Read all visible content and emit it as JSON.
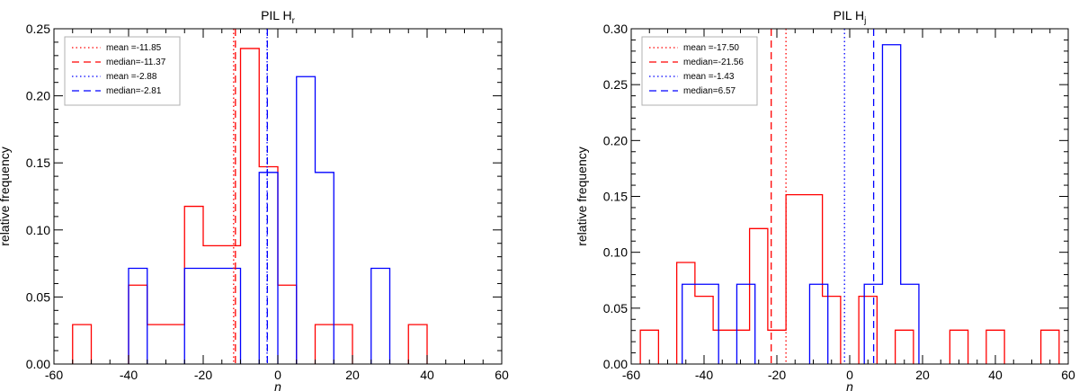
{
  "chart_data": [
    {
      "type": "histogram",
      "title": "PIL H",
      "title_subscript": "r",
      "xlabel": "η",
      "ylabel": "relative frequency",
      "xlim": [
        -60,
        60
      ],
      "ylim": [
        0,
        0.25
      ],
      "xticks": [
        -60,
        -40,
        -20,
        0,
        20,
        40,
        60
      ],
      "yticks": [
        0.0,
        0.05,
        0.1,
        0.15,
        0.2,
        0.25
      ],
      "ytick_labels": [
        "0.00",
        "0.05",
        "0.10",
        "0.15",
        "0.20",
        "0.25"
      ],
      "bin_width": 5,
      "series": [
        {
          "name": "red",
          "color": "#ff0000",
          "bins": [
            {
              "x0": -55,
              "x1": -50,
              "y": 0.0294
            },
            {
              "x0": -40,
              "x1": -35,
              "y": 0.0588
            },
            {
              "x0": -35,
              "x1": -30,
              "y": 0.0294
            },
            {
              "x0": -30,
              "x1": -25,
              "y": 0.0294
            },
            {
              "x0": -25,
              "x1": -20,
              "y": 0.1176
            },
            {
              "x0": -20,
              "x1": -15,
              "y": 0.0882
            },
            {
              "x0": -15,
              "x1": -10,
              "y": 0.0882
            },
            {
              "x0": -10,
              "x1": -5,
              "y": 0.2353
            },
            {
              "x0": -5,
              "x1": 0,
              "y": 0.1471
            },
            {
              "x0": 0,
              "x1": 5,
              "y": 0.0588
            },
            {
              "x0": 10,
              "x1": 15,
              "y": 0.0294
            },
            {
              "x0": 15,
              "x1": 20,
              "y": 0.0294
            },
            {
              "x0": 35,
              "x1": 40,
              "y": 0.0294
            }
          ]
        },
        {
          "name": "blue",
          "color": "#0000ff",
          "bins": [
            {
              "x0": -40,
              "x1": -35,
              "y": 0.0714
            },
            {
              "x0": -25,
              "x1": -20,
              "y": 0.0714
            },
            {
              "x0": -20,
              "x1": -15,
              "y": 0.0714
            },
            {
              "x0": -15,
              "x1": -10,
              "y": 0.0714
            },
            {
              "x0": -5,
              "x1": 0,
              "y": 0.1429
            },
            {
              "x0": 5,
              "x1": 10,
              "y": 0.2143
            },
            {
              "x0": 10,
              "x1": 15,
              "y": 0.1429
            },
            {
              "x0": 25,
              "x1": 30,
              "y": 0.0714
            }
          ]
        }
      ],
      "vlines": [
        {
          "label": "mean =-11.85",
          "x": -11.85,
          "color": "#ff0000",
          "style": "dotted"
        },
        {
          "label": "median=-11.37",
          "x": -11.37,
          "color": "#ff0000",
          "style": "dashed"
        },
        {
          "label": "mean =-2.88",
          "x": -2.88,
          "color": "#0000ff",
          "style": "dotted"
        },
        {
          "label": "median=-2.81",
          "x": -2.81,
          "color": "#0000ff",
          "style": "dashed"
        }
      ],
      "legend_position": "top-left"
    },
    {
      "type": "histogram",
      "title": "PIL H",
      "title_subscript": "j",
      "xlabel": "η",
      "ylabel": "relative frequency",
      "xlim": [
        -60,
        60
      ],
      "ylim": [
        0,
        0.3
      ],
      "xticks": [
        -60,
        -40,
        -20,
        0,
        20,
        40,
        60
      ],
      "yticks": [
        0.0,
        0.05,
        0.1,
        0.15,
        0.2,
        0.25,
        0.3
      ],
      "ytick_labels": [
        "0.00",
        "0.05",
        "0.10",
        "0.15",
        "0.20",
        "0.25",
        "0.30"
      ],
      "bin_width": 5,
      "series": [
        {
          "name": "red",
          "color": "#ff0000",
          "bins": [
            {
              "x0": -57.5,
              "x1": -52.5,
              "y": 0.0303
            },
            {
              "x0": -47.5,
              "x1": -42.5,
              "y": 0.0909
            },
            {
              "x0": -42.5,
              "x1": -37.5,
              "y": 0.0606
            },
            {
              "x0": -37.5,
              "x1": -32.5,
              "y": 0.0303
            },
            {
              "x0": -32.5,
              "x1": -27.5,
              "y": 0.0303
            },
            {
              "x0": -27.5,
              "x1": -22.5,
              "y": 0.1212
            },
            {
              "x0": -22.5,
              "x1": -17.5,
              "y": 0.0303
            },
            {
              "x0": -17.5,
              "x1": -12.5,
              "y": 0.1515
            },
            {
              "x0": -12.5,
              "x1": -7.5,
              "y": 0.1515
            },
            {
              "x0": -7.5,
              "x1": -2.5,
              "y": 0.0606
            },
            {
              "x0": 2.5,
              "x1": 7.5,
              "y": 0.0606
            },
            {
              "x0": 12.5,
              "x1": 17.5,
              "y": 0.0303
            },
            {
              "x0": 27.5,
              "x1": 32.5,
              "y": 0.0303
            },
            {
              "x0": 37.5,
              "x1": 42.5,
              "y": 0.0303
            },
            {
              "x0": 52.5,
              "x1": 57.5,
              "y": 0.0303
            }
          ]
        },
        {
          "name": "blue",
          "color": "#0000ff",
          "bins": [
            {
              "x0": -46,
              "x1": -41,
              "y": 0.0714
            },
            {
              "x0": -41,
              "x1": -36,
              "y": 0.0714
            },
            {
              "x0": -31,
              "x1": -26,
              "y": 0.0714
            },
            {
              "x0": -11,
              "x1": -6,
              "y": 0.0714
            },
            {
              "x0": 4,
              "x1": 9,
              "y": 0.0714
            },
            {
              "x0": 9,
              "x1": 14,
              "y": 0.2857
            },
            {
              "x0": 14,
              "x1": 19,
              "y": 0.0714
            }
          ]
        }
      ],
      "vlines": [
        {
          "label": "mean =-17.50",
          "x": -17.5,
          "color": "#ff0000",
          "style": "dotted"
        },
        {
          "label": "median=-21.56",
          "x": -21.56,
          "color": "#ff0000",
          "style": "dashed"
        },
        {
          "label": "mean =-1.43",
          "x": -1.43,
          "color": "#0000ff",
          "style": "dotted"
        },
        {
          "label": "median=6.57",
          "x": 6.57,
          "color": "#0000ff",
          "style": "dashed"
        }
      ],
      "legend_position": "top-left"
    }
  ]
}
